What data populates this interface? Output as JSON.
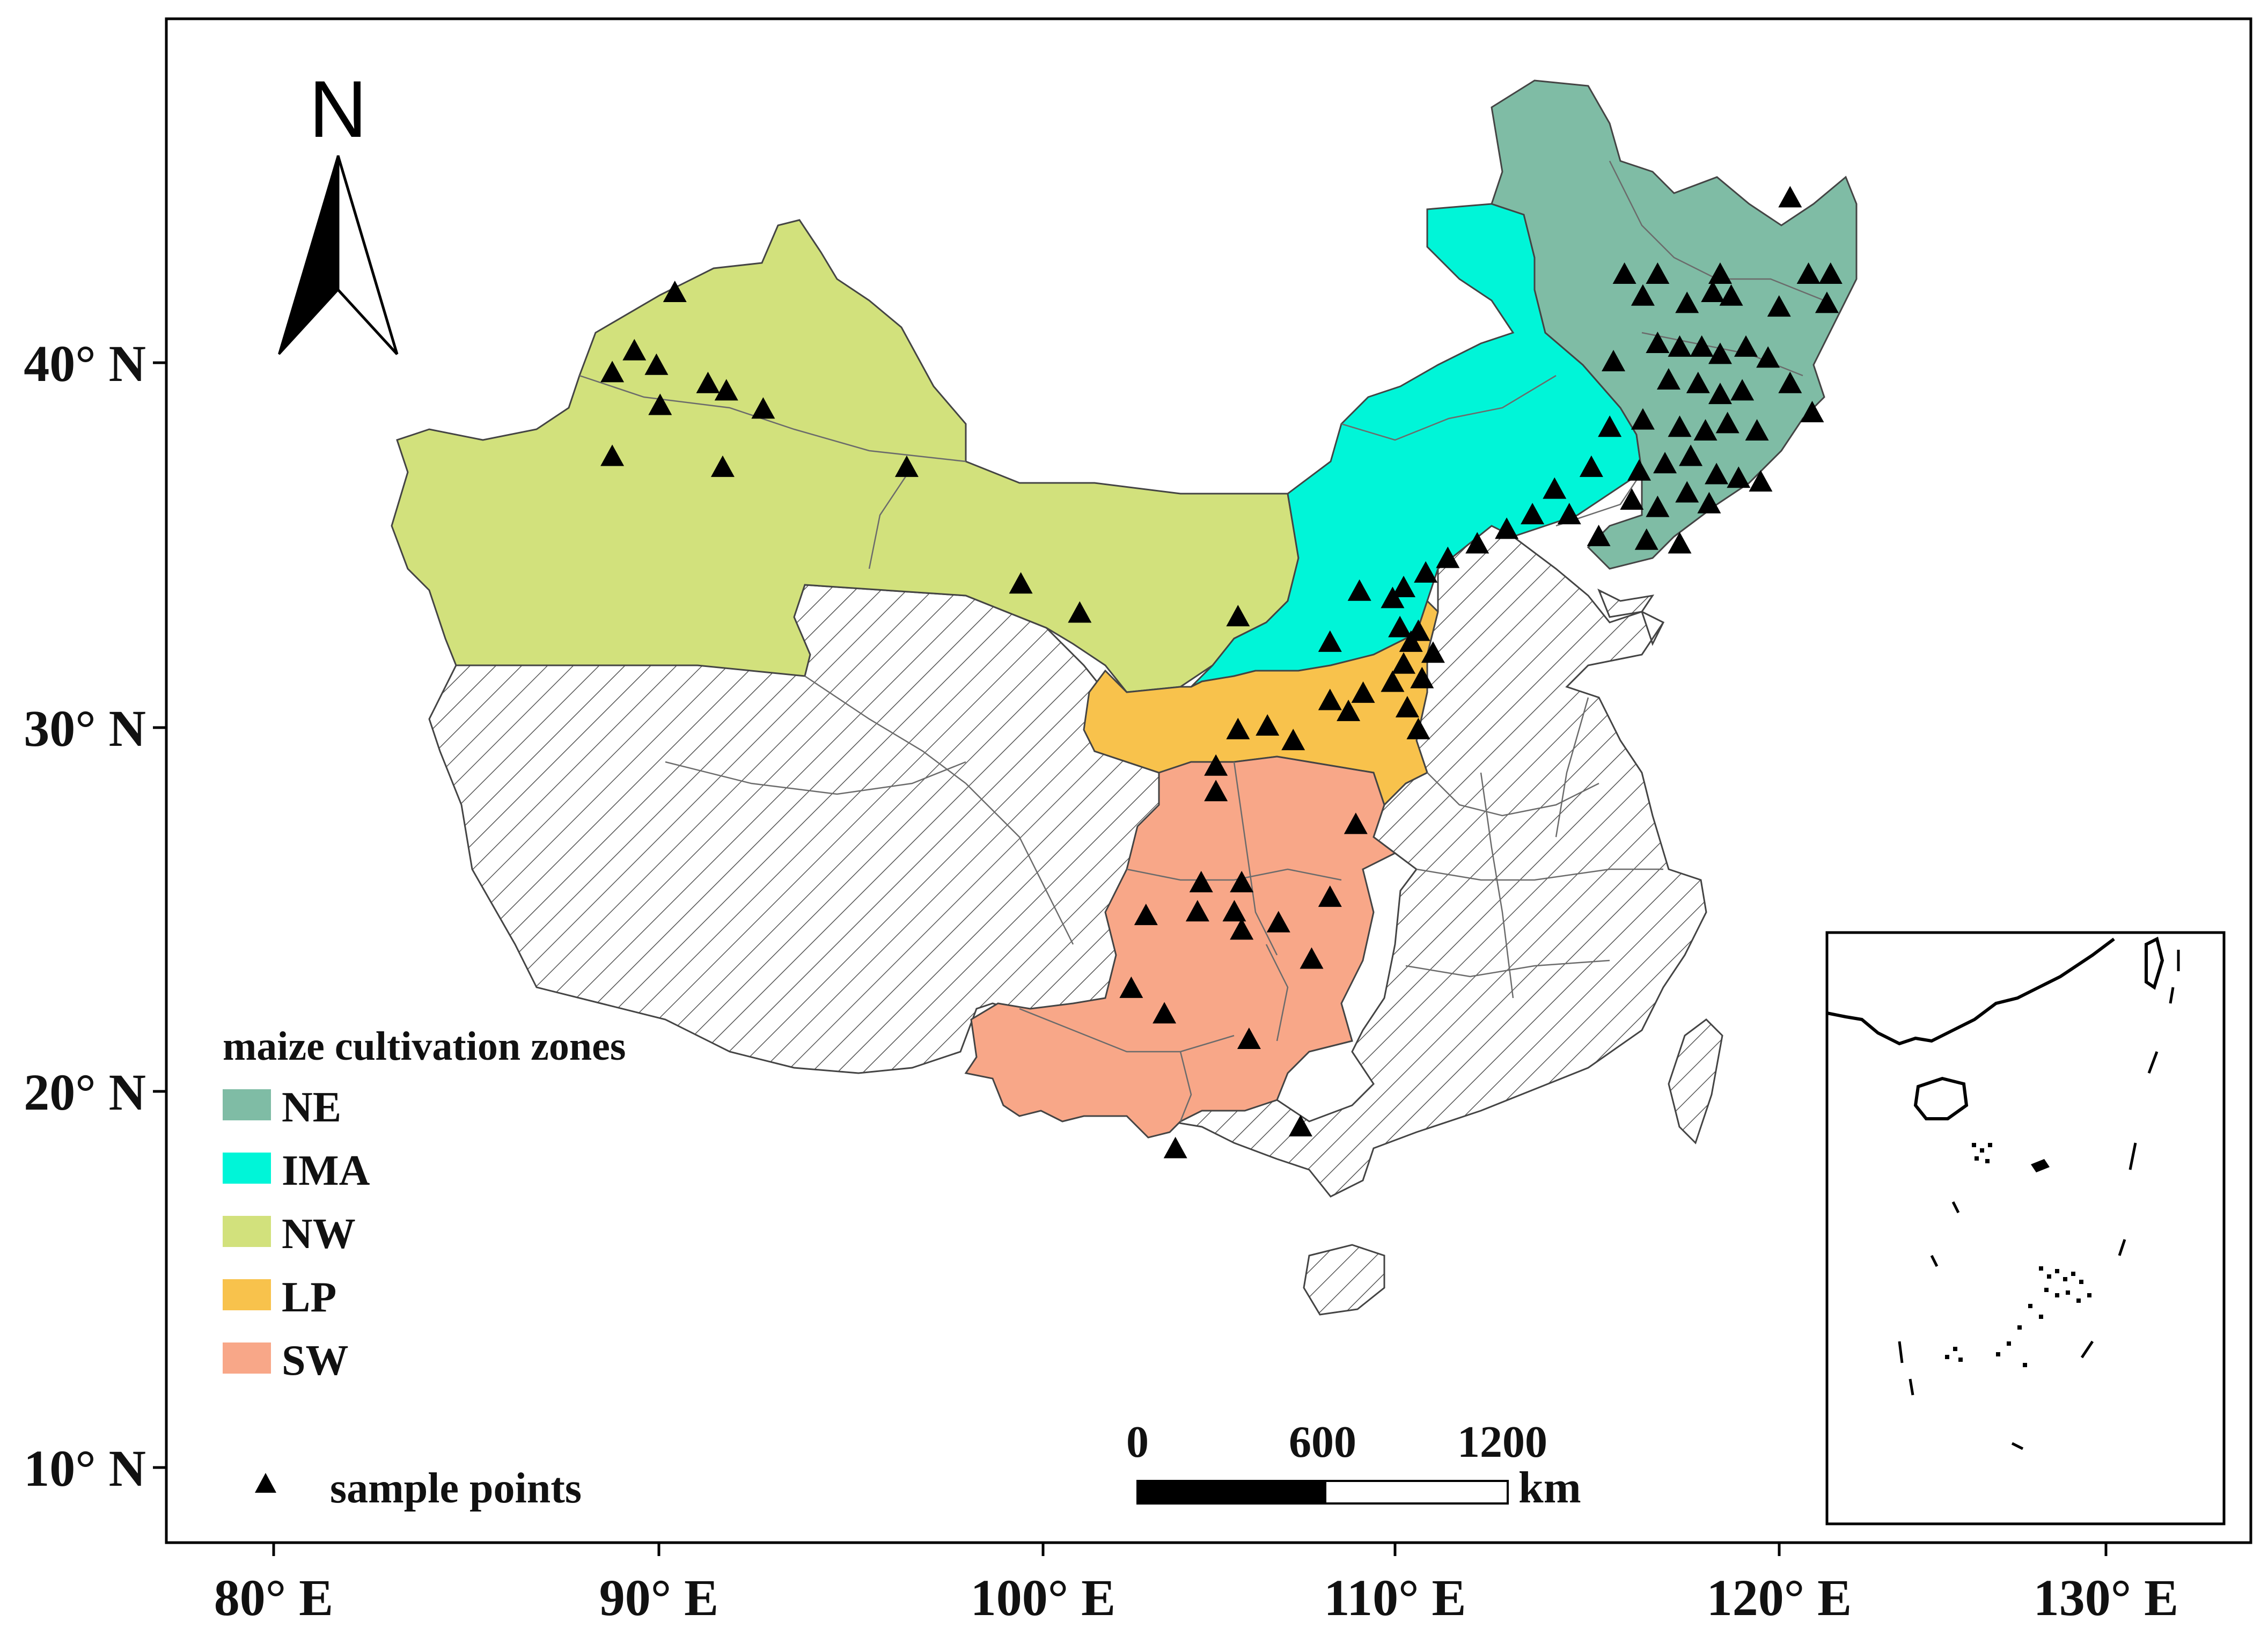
{
  "colors": {
    "NE": "#7fbca5",
    "IMA": "#00f5d8",
    "NW": "#d2e17c",
    "LP": "#f8c24c",
    "SW": "#f8a788",
    "other": "#ffffff",
    "hatch": "#555555"
  },
  "axes": {
    "x_ticks": [
      "80° E",
      "90° E",
      "100° E",
      "110° E",
      "120° E",
      "130° E"
    ],
    "y_ticks": [
      "40° N",
      "30° N",
      "20° N",
      "10° N"
    ]
  },
  "north_arrow": {
    "label": "N"
  },
  "legend": {
    "title": "maize cultivation zones",
    "zones": [
      {
        "code": "NE",
        "label": "NE"
      },
      {
        "code": "IMA",
        "label": "IMA"
      },
      {
        "code": "NW",
        "label": "NW"
      },
      {
        "code": "LP",
        "label": "LP"
      },
      {
        "code": "SW",
        "label": "SW"
      }
    ],
    "points_label": "sample points",
    "points_icon": "triangle-marker"
  },
  "scale_bar": {
    "labels": [
      "0",
      "600",
      "1200"
    ],
    "unit": "km"
  },
  "sample_points": {
    "NW": [
      [
        89.2,
        39.7
      ],
      [
        89.8,
        40.3
      ],
      [
        90.4,
        39.9
      ],
      [
        89.2,
        37.4
      ],
      [
        90.5,
        38.8
      ],
      [
        91.8,
        39.4
      ],
      [
        92.3,
        39.2
      ],
      [
        93.3,
        38.7
      ],
      [
        92.2,
        37.1
      ],
      [
        97.2,
        37.1
      ],
      [
        90.9,
        41.9
      ],
      [
        100.3,
        33.9
      ],
      [
        101.9,
        33.1
      ],
      [
        106.2,
        33.0
      ]
    ],
    "NE": [
      [
        121.2,
        44.5
      ],
      [
        116.7,
        42.4
      ],
      [
        117.6,
        42.4
      ],
      [
        119.3,
        42.4
      ],
      [
        121.7,
        42.4
      ],
      [
        122.3,
        42.4
      ],
      [
        117.2,
        41.8
      ],
      [
        118.4,
        41.6
      ],
      [
        119.1,
        41.9
      ],
      [
        119.6,
        41.8
      ],
      [
        120.9,
        41.5
      ],
      [
        122.2,
        41.6
      ],
      [
        116.4,
        40.0
      ],
      [
        117.6,
        40.5
      ],
      [
        118.2,
        40.4
      ],
      [
        118.8,
        40.4
      ],
      [
        119.3,
        40.2
      ],
      [
        120.0,
        40.4
      ],
      [
        120.6,
        40.1
      ],
      [
        121.2,
        39.4
      ],
      [
        117.9,
        39.5
      ],
      [
        118.7,
        39.4
      ],
      [
        119.3,
        39.1
      ],
      [
        119.9,
        39.2
      ],
      [
        121.8,
        38.6
      ],
      [
        117.2,
        38.4
      ],
      [
        118.2,
        38.2
      ],
      [
        118.9,
        38.1
      ],
      [
        119.5,
        38.3
      ],
      [
        120.3,
        38.1
      ],
      [
        116.3,
        38.2
      ],
      [
        117.1,
        37.0
      ],
      [
        117.8,
        37.2
      ],
      [
        118.5,
        37.4
      ],
      [
        119.2,
        36.9
      ],
      [
        119.8,
        36.8
      ],
      [
        120.4,
        36.7
      ],
      [
        116.9,
        36.2
      ],
      [
        117.6,
        36.0
      ],
      [
        118.4,
        36.4
      ],
      [
        119.0,
        36.1
      ],
      [
        117.3,
        35.1
      ],
      [
        118.2,
        35.0
      ],
      [
        116.0,
        35.2
      ]
    ],
    "IMA": [
      [
        115.8,
        37.1
      ],
      [
        114.8,
        36.5
      ],
      [
        115.2,
        35.8
      ],
      [
        114.2,
        35.8
      ],
      [
        113.5,
        35.4
      ],
      [
        112.7,
        35.0
      ],
      [
        111.9,
        34.6
      ],
      [
        111.3,
        34.2
      ],
      [
        110.7,
        33.8
      ],
      [
        110.4,
        33.5
      ],
      [
        109.5,
        33.7
      ]
    ],
    "LP": [
      [
        108.7,
        32.3
      ],
      [
        110.6,
        32.7
      ],
      [
        111.1,
        32.6
      ],
      [
        110.9,
        32.3
      ],
      [
        111.5,
        32.0
      ],
      [
        110.7,
        31.7
      ],
      [
        111.2,
        31.3
      ],
      [
        110.4,
        31.2
      ],
      [
        109.6,
        30.9
      ],
      [
        108.7,
        30.7
      ],
      [
        109.2,
        30.4
      ],
      [
        110.8,
        30.5
      ],
      [
        111.1,
        29.9
      ],
      [
        106.2,
        29.9
      ],
      [
        107.0,
        30.0
      ],
      [
        107.7,
        29.6
      ]
    ],
    "SW": [
      [
        105.6,
        28.9
      ],
      [
        105.6,
        28.2
      ],
      [
        109.4,
        27.3
      ],
      [
        103.7,
        24.8
      ],
      [
        105.2,
        25.7
      ],
      [
        106.3,
        25.7
      ],
      [
        105.1,
        24.9
      ],
      [
        106.1,
        24.9
      ],
      [
        106.3,
        24.4
      ],
      [
        107.3,
        24.6
      ],
      [
        108.7,
        25.3
      ],
      [
        103.3,
        22.8
      ],
      [
        104.2,
        22.1
      ],
      [
        108.2,
        23.6
      ],
      [
        106.5,
        21.4
      ],
      [
        104.5,
        18.4
      ],
      [
        107.9,
        19.0
      ]
    ]
  }
}
